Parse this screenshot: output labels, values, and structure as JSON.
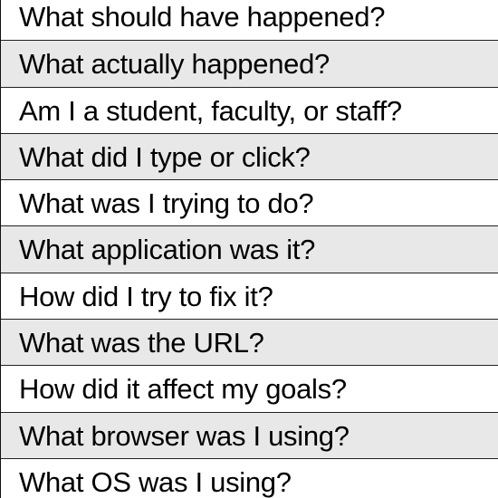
{
  "rows": [
    "What should have happened?",
    "What actually happened?",
    "Am I a student, faculty, or staff?",
    "What did I type or click?",
    "What was I trying to do?",
    "What application was it?",
    "How did I try to fix it?",
    "What was the URL?",
    "How did it affect my goals?",
    "What browser was I using?",
    "What OS was I using?"
  ]
}
